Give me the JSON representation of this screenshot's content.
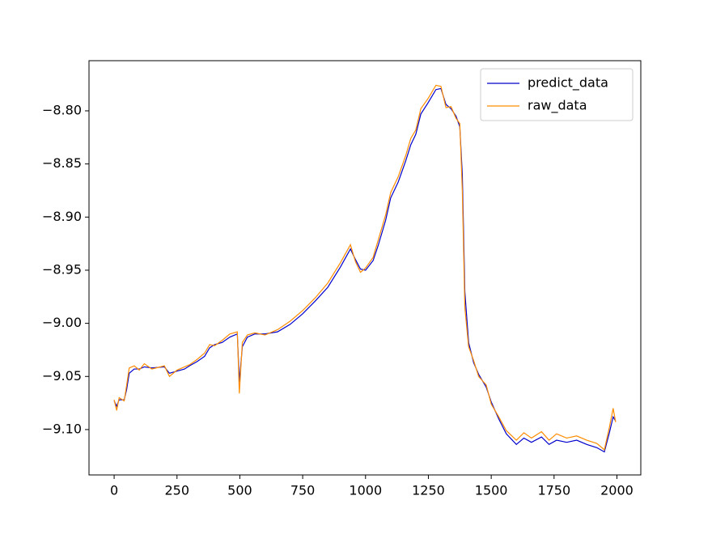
{
  "chart_data": {
    "type": "line",
    "x": [
      0,
      10,
      20,
      40,
      50,
      60,
      80,
      100,
      120,
      150,
      200,
      220,
      250,
      280,
      300,
      330,
      360,
      380,
      400,
      430,
      460,
      490,
      498,
      510,
      530,
      560,
      600,
      650,
      700,
      750,
      800,
      850,
      900,
      940,
      960,
      980,
      1000,
      1030,
      1050,
      1080,
      1100,
      1130,
      1160,
      1180,
      1200,
      1220,
      1250,
      1280,
      1300,
      1320,
      1340,
      1360,
      1375,
      1385,
      1395,
      1410,
      1430,
      1450,
      1480,
      1500,
      1530,
      1560,
      1600,
      1630,
      1660,
      1700,
      1730,
      1760,
      1800,
      1840,
      1880,
      1920,
      1950,
      1970,
      1985,
      1995
    ],
    "series": [
      {
        "name": "predict_data",
        "color": "#0000cc",
        "values": [
          -9.073,
          -9.078,
          -9.072,
          -9.072,
          -9.062,
          -9.047,
          -9.043,
          -9.043,
          -9.041,
          -9.042,
          -9.041,
          -9.047,
          -9.045,
          -9.043,
          -9.04,
          -9.036,
          -9.031,
          -9.023,
          -9.02,
          -9.018,
          -9.013,
          -9.01,
          -9.055,
          -9.022,
          -9.013,
          -9.01,
          -9.01,
          -9.008,
          -9.001,
          -8.991,
          -8.979,
          -8.966,
          -8.947,
          -8.93,
          -8.94,
          -8.949,
          -8.95,
          -8.941,
          -8.927,
          -8.903,
          -8.882,
          -8.867,
          -8.847,
          -8.832,
          -8.822,
          -8.803,
          -8.792,
          -8.78,
          -8.779,
          -8.794,
          -8.798,
          -8.805,
          -8.815,
          -8.86,
          -8.97,
          -9.018,
          -9.037,
          -9.048,
          -9.06,
          -9.074,
          -9.09,
          -9.104,
          -9.114,
          -9.108,
          -9.112,
          -9.107,
          -9.114,
          -9.11,
          -9.112,
          -9.11,
          -9.114,
          -9.117,
          -9.121,
          -9.103,
          -9.088,
          -9.092
        ]
      },
      {
        "name": "raw_data",
        "color": "#ff8c00",
        "values": [
          -9.072,
          -9.082,
          -9.07,
          -9.073,
          -9.058,
          -9.042,
          -9.04,
          -9.044,
          -9.038,
          -9.043,
          -9.04,
          -9.05,
          -9.044,
          -9.041,
          -9.039,
          -9.034,
          -9.028,
          -9.02,
          -9.021,
          -9.016,
          -9.01,
          -9.008,
          -9.066,
          -9.018,
          -9.011,
          -9.009,
          -9.011,
          -9.006,
          -8.998,
          -8.988,
          -8.976,
          -8.962,
          -8.943,
          -8.926,
          -8.942,
          -8.952,
          -8.948,
          -8.938,
          -8.922,
          -8.898,
          -8.877,
          -8.862,
          -8.842,
          -8.826,
          -8.818,
          -8.798,
          -8.788,
          -8.776,
          -8.777,
          -8.797,
          -8.796,
          -8.807,
          -8.812,
          -8.875,
          -8.985,
          -9.022,
          -9.035,
          -9.05,
          -9.058,
          -9.076,
          -9.088,
          -9.101,
          -9.11,
          -9.103,
          -9.108,
          -9.102,
          -9.11,
          -9.104,
          -9.108,
          -9.106,
          -9.11,
          -9.113,
          -9.119,
          -9.098,
          -9.08,
          -9.093
        ]
      }
    ],
    "xlim": [
      -100,
      2095
    ],
    "ylim": [
      -9.1427,
      -8.7528
    ],
    "xticks": [
      0,
      250,
      500,
      750,
      1000,
      1250,
      1500,
      1750,
      2000
    ],
    "yticks": [
      {
        "value": -9.1,
        "label": "−9.10"
      },
      {
        "value": -9.05,
        "label": "−9.05"
      },
      {
        "value": -9.0,
        "label": "−9.00"
      },
      {
        "value": -8.95,
        "label": "−8.95"
      },
      {
        "value": -8.9,
        "label": "−8.90"
      },
      {
        "value": -8.85,
        "label": "−8.85"
      },
      {
        "value": -8.8,
        "label": "−8.80"
      }
    ],
    "legend": "upper right",
    "grid": false
  }
}
